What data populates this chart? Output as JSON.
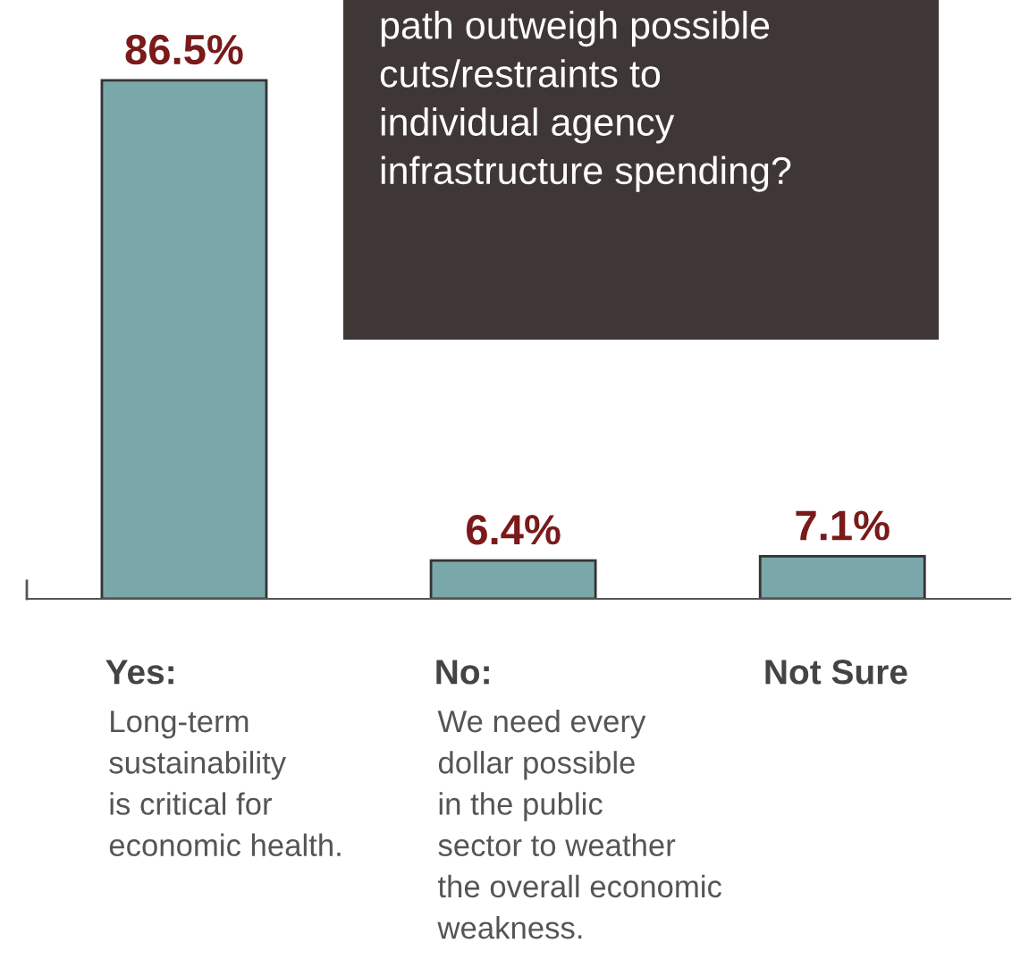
{
  "chart_data": {
    "type": "bar",
    "title": "path outweigh possible\ncuts/restraints to\nindividual agency\ninfrastructure spending?",
    "categories": [
      "Yes:\nLong-term\nsustainability\nis critical for\neconomic health.",
      "No:\nWe need every\ndollar possible\nin the public\nsector to weather\nthe overall economic\nweakness.",
      "Not Sure"
    ],
    "values": [
      86.5,
      6.4,
      7.1
    ],
    "value_labels": [
      "86.5%",
      "6.4%",
      "7.1%"
    ],
    "color": "#7aa7aa",
    "data_labels": false
  }
}
